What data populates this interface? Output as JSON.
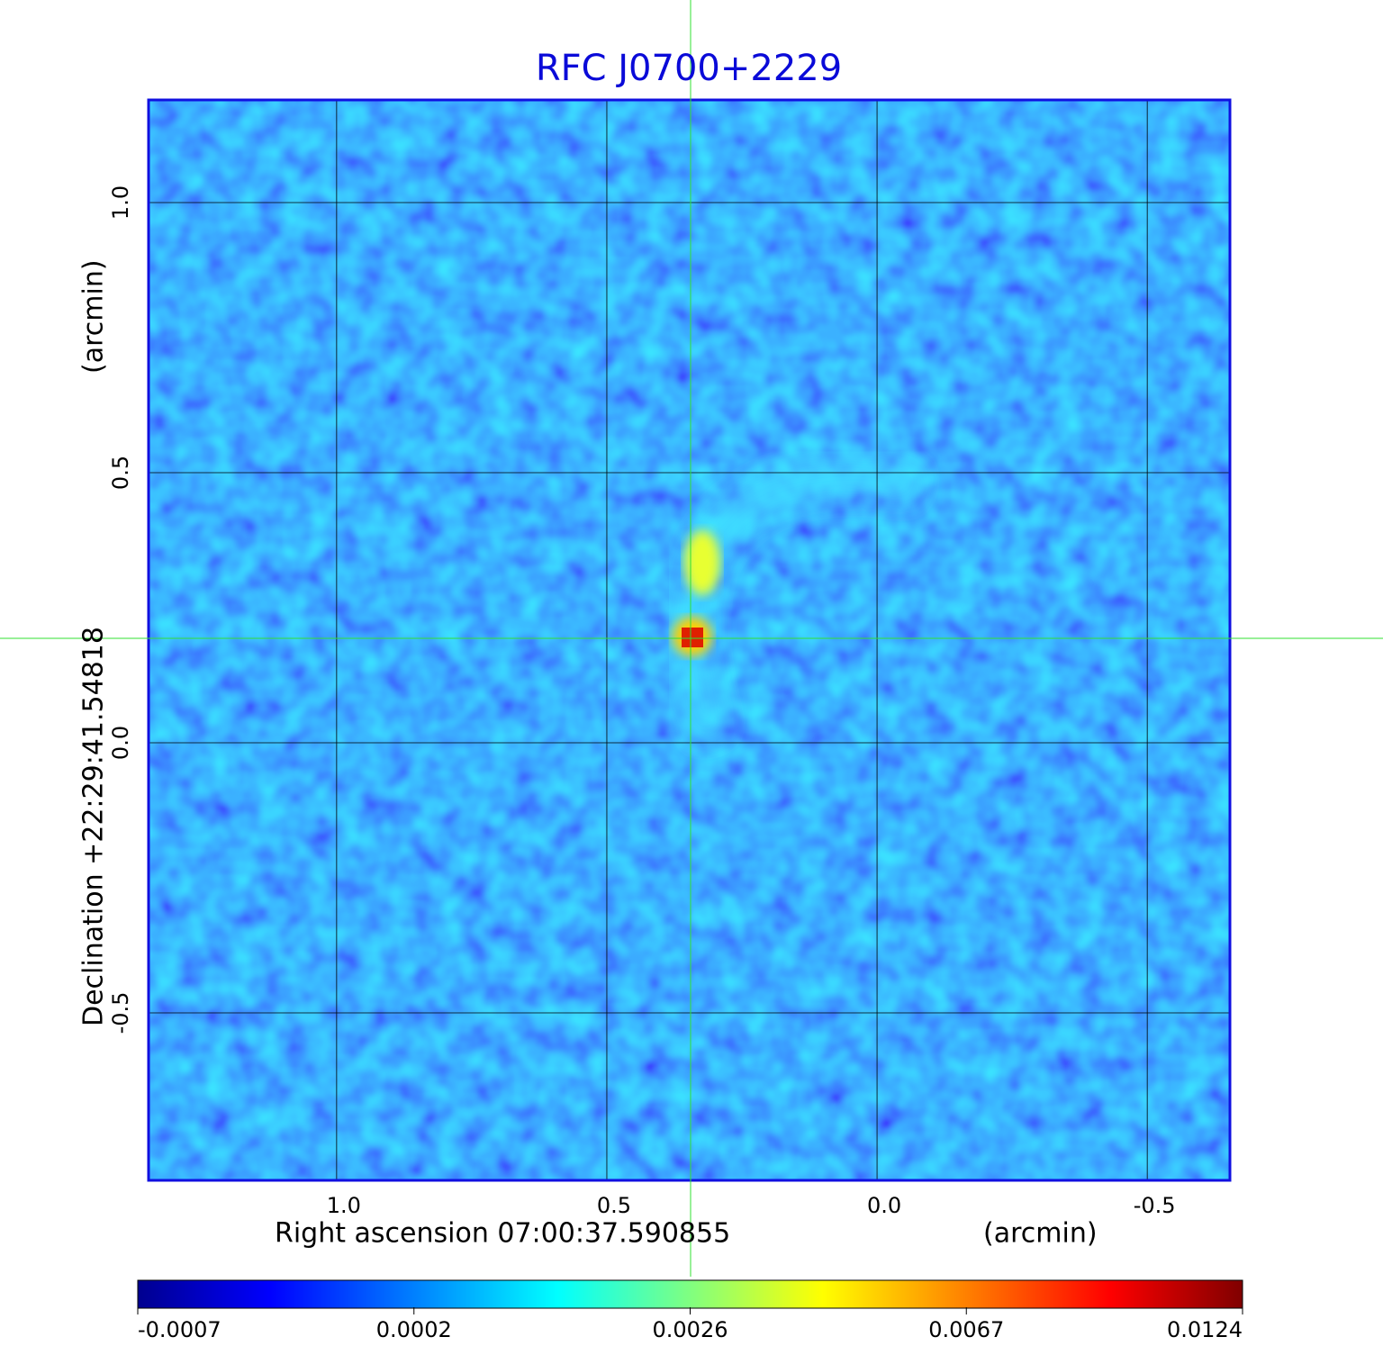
{
  "chart_data": {
    "type": "image",
    "title": "RFC J0700+2229",
    "x_label": "Right ascension  07:00:37.590855",
    "x_unit": "(arcmin)",
    "y_label": "Declination  +22:29:41.54818",
    "y_unit": "(arcmin)",
    "xlim": [
      1.348,
      -0.653
    ],
    "ylim": [
      -0.81,
      1.19
    ],
    "xticks": [
      {
        "value": 1,
        "label": "1.0"
      },
      0.5,
      {
        "value": 0,
        "label": "0.0"
      },
      -0.5
    ],
    "yticks": [
      -0.5,
      {
        "value": 0,
        "label": "0.0"
      },
      0.5,
      {
        "value": 1,
        "label": "1.0"
      }
    ],
    "grid": true,
    "colorbar_ticks": [
      -0.0007,
      0.0002,
      0.0026,
      0.0067,
      0.0124
    ]
  }
}
